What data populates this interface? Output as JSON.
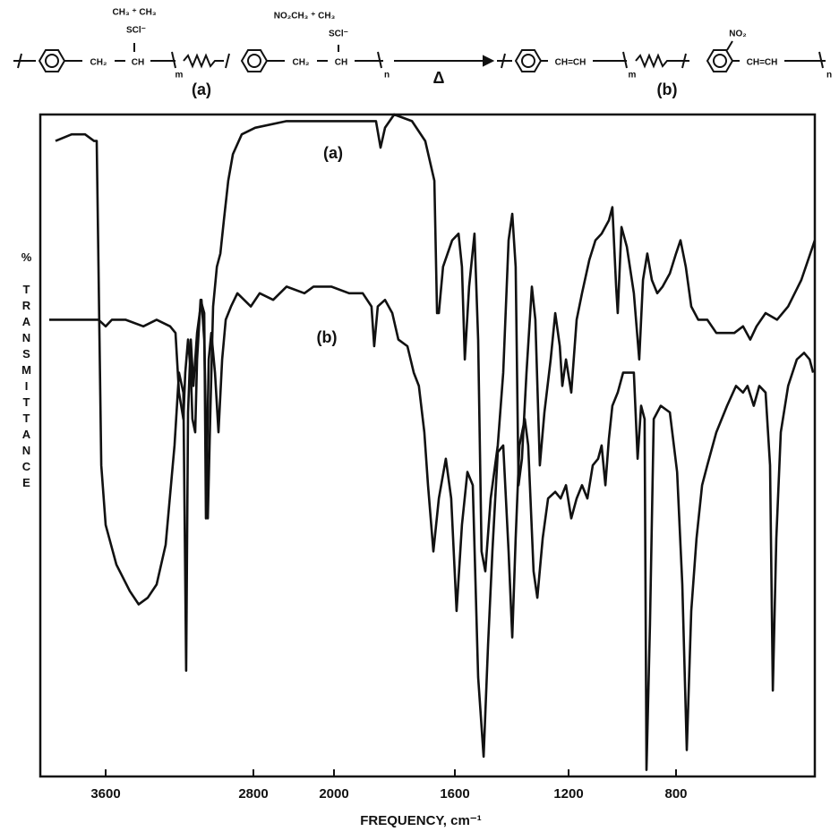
{
  "scheme": {
    "reactant_label": "(a)",
    "product_label": "(b)",
    "heat": "Δ",
    "sulfonium": "CH₃ ⁺ CH₃",
    "counterion": "SCl⁻",
    "nitro_sulfonium": "NO₂CH₃ ⁺ CH₃",
    "ch2": "CH₂",
    "ch": "CH",
    "m": "m",
    "n": "n",
    "nitro": "NO₂",
    "vinylene": "CH=CH"
  },
  "chart_data": {
    "type": "line",
    "xlabel": "FREQUENCY, cm⁻¹",
    "ylabel": "% TRANSMITTANCE",
    "xlim": [
      4000,
      400
    ],
    "ylim": [
      0,
      100
    ],
    "xticks": [
      3600,
      2800,
      2000,
      1600,
      1200,
      800
    ],
    "series": [
      {
        "name": "(a)",
        "color": "#111111",
        "x": [
          3907,
          3808,
          3726,
          3671,
          3655,
          3644,
          3627,
          3600,
          3542,
          3469,
          3421,
          3372,
          3324,
          3275,
          3227,
          3203,
          3179,
          3164,
          3154,
          3139,
          3125,
          3105,
          3081,
          3066,
          3047,
          3032,
          3018,
          2998,
          2979,
          2960,
          2936,
          2911,
          2863,
          2782,
          2471,
          2115,
          1920,
          1861,
          1846,
          1831,
          1801,
          1742,
          1698,
          1668,
          1659,
          1653,
          1639,
          1609,
          1587,
          1575,
          1565,
          1550,
          1531,
          1518,
          1506,
          1493,
          1474,
          1449,
          1430,
          1411,
          1398,
          1386,
          1376,
          1364,
          1348,
          1329,
          1317,
          1301,
          1285,
          1263,
          1247,
          1231,
          1222,
          1209,
          1190,
          1170,
          1150,
          1123,
          1100,
          1077,
          1050,
          1037,
          1023,
          1017,
          1003,
          983,
          957,
          937,
          923,
          907,
          890,
          870,
          850,
          823,
          800,
          787,
          772,
          756,
          736,
          710,
          684,
          632,
          607,
          586,
          568,
          542,
          509,
          477,
          439,
          400
        ],
        "values": [
          96,
          97,
          97,
          96,
          96,
          77,
          47,
          38,
          32,
          28,
          26,
          27,
          29,
          35,
          50,
          61,
          58,
          16,
          55,
          66,
          59,
          67,
          72,
          66,
          39,
          56,
          71,
          77,
          79,
          84,
          90,
          94,
          97,
          98,
          99,
          99,
          99,
          99,
          95,
          98,
          100,
          99,
          96,
          90,
          70,
          70,
          77,
          81,
          82,
          77,
          63,
          74,
          82,
          66,
          34,
          31,
          42,
          50,
          61,
          81,
          85,
          77,
          44,
          48,
          61,
          74,
          69,
          47,
          55,
          63,
          70,
          65,
          59,
          63,
          58,
          69,
          73,
          78,
          81,
          82,
          84,
          86,
          74,
          70,
          83,
          80,
          73,
          63,
          75,
          79,
          75,
          73,
          74,
          76,
          79,
          81,
          77,
          71,
          69,
          69,
          67,
          67,
          68,
          66,
          68,
          70,
          69,
          71,
          75,
          81
        ]
      },
      {
        "name": "(b)",
        "color": "#111111",
        "x": [
          3945,
          3808,
          3726,
          3644,
          3600,
          3566,
          3493,
          3396,
          3324,
          3251,
          3222,
          3203,
          3179,
          3169,
          3154,
          3139,
          3130,
          3115,
          3105,
          3086,
          3066,
          3057,
          3042,
          3028,
          3008,
          2989,
          2969,
          2950,
          2921,
          2887,
          2814,
          2738,
          2604,
          2471,
          2293,
          2204,
          2027,
          1950,
          1905,
          1876,
          1867,
          1855,
          1831,
          1807,
          1787,
          1757,
          1736,
          1719,
          1701,
          1689,
          1671,
          1653,
          1630,
          1612,
          1594,
          1575,
          1556,
          1537,
          1518,
          1499,
          1483,
          1468,
          1449,
          1430,
          1411,
          1398,
          1386,
          1373,
          1354,
          1342,
          1323,
          1310,
          1291,
          1272,
          1247,
          1228,
          1209,
          1190,
          1170,
          1150,
          1130,
          1110,
          1090,
          1077,
          1063,
          1050,
          1037,
          1017,
          997,
          977,
          957,
          943,
          930,
          917,
          910,
          897,
          883,
          857,
          823,
          797,
          782,
          769,
          756,
          741,
          725,
          710,
          684,
          653,
          627,
          607,
          594,
          576,
          560,
          542,
          529,
          521,
          511,
          498,
          477,
          452,
          431,
          415,
          405
        ],
        "values": [
          69,
          69,
          69,
          69,
          68,
          69,
          69,
          68,
          69,
          68,
          67,
          58,
          54,
          61,
          66,
          61,
          54,
          52,
          63,
          72,
          70,
          39,
          63,
          67,
          61,
          52,
          63,
          69,
          71,
          73,
          71,
          73,
          72,
          74,
          73,
          74,
          74,
          73,
          73,
          71,
          65,
          71,
          72,
          70,
          66,
          65,
          61,
          59,
          52,
          44,
          34,
          42,
          48,
          42,
          25,
          38,
          46,
          44,
          15,
          3,
          20,
          34,
          49,
          50,
          34,
          21,
          36,
          50,
          54,
          50,
          31,
          27,
          36,
          42,
          43,
          42,
          44,
          39,
          42,
          44,
          42,
          47,
          48,
          50,
          44,
          51,
          56,
          58,
          61,
          61,
          61,
          48,
          56,
          54,
          1,
          23,
          54,
          56,
          55,
          46,
          29,
          4,
          25,
          36,
          44,
          47,
          52,
          56,
          59,
          58,
          59,
          56,
          59,
          58,
          47,
          13,
          36,
          52,
          59,
          63,
          64,
          63,
          61
        ]
      }
    ]
  }
}
